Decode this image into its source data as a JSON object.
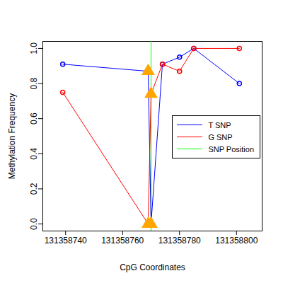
{
  "chart_data": {
    "type": "line",
    "x_label": "CpG Coordinates",
    "y_label": "Methylation Frequency",
    "x": [
      131358739,
      131358769,
      131358770,
      131358774,
      131358780,
      131358785,
      131358801
    ],
    "series": [
      {
        "name": "T SNP",
        "color": "#0000ff",
        "values": [
          0.91,
          0.87,
          0.0,
          0.91,
          0.95,
          1.0,
          0.8
        ],
        "marker": [
          "circle",
          "triangle",
          "triangle",
          "circle",
          "circle",
          "circle",
          "circle"
        ]
      },
      {
        "name": "G SNP",
        "color": "#ff0000",
        "values": [
          0.75,
          0.0,
          0.74,
          0.91,
          0.87,
          1.0,
          1.0
        ],
        "marker": [
          "circle",
          "triangle",
          "triangle",
          "circle",
          "circle",
          "circle",
          "circle"
        ]
      },
      {
        "name": "SNP Position",
        "color": "#00ff00",
        "type": "vline",
        "x": 131358770
      }
    ],
    "xlim": [
      131358732,
      131358809
    ],
    "ylim": [
      -0.04,
      1.04
    ],
    "xticks": [
      131358740,
      131358760,
      131358780,
      131358800
    ],
    "yticks": [
      {
        "value": 0,
        "label": "0.0"
      },
      {
        "value": 0.2,
        "label": "0.2"
      },
      {
        "value": 0.4,
        "label": "0.4"
      },
      {
        "value": 0.6,
        "label": "0.6"
      },
      {
        "value": 0.8,
        "label": "0.8"
      },
      {
        "value": 1.0,
        "label": "1.0"
      }
    ],
    "legend": "right",
    "grid": false
  }
}
